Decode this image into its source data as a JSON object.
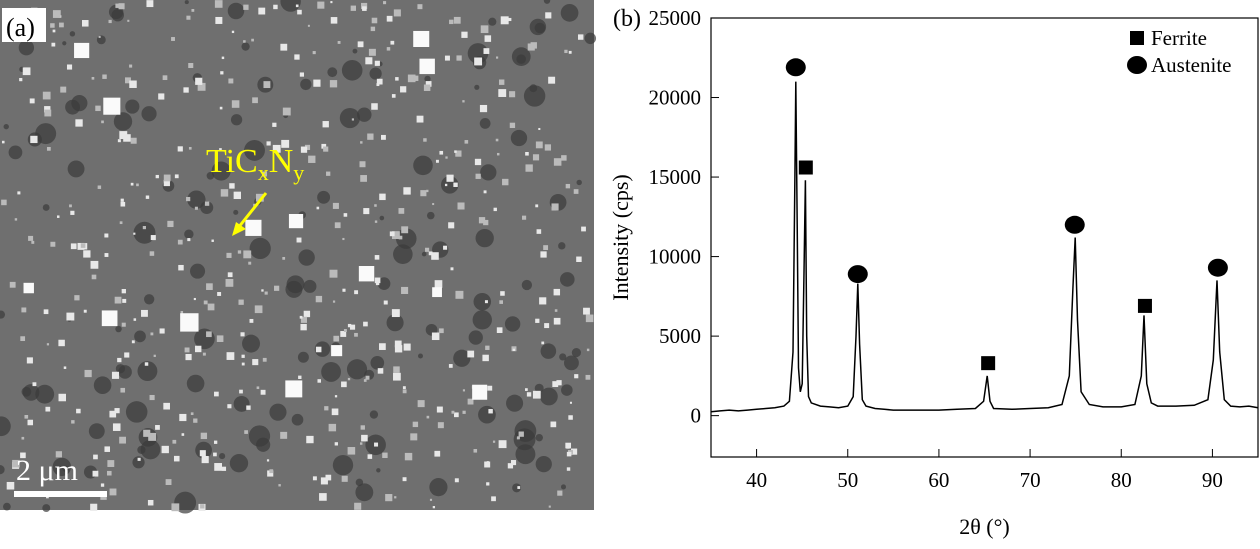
{
  "micrograph": {
    "label": "(a)",
    "annotation": {
      "parts": [
        "TiC",
        "x",
        "N",
        "y"
      ]
    },
    "scale_bar": "2 μm"
  },
  "chart_data": {
    "type": "line",
    "label": "(b)",
    "xlabel": "2θ (°)",
    "ylabel": "Intensity (cps)",
    "color": "#000000",
    "x": [
      35,
      36,
      37,
      38,
      39,
      40,
      41,
      42,
      43,
      43.6,
      44.0,
      44.2,
      44.3,
      44.45,
      44.6,
      44.8,
      45.0,
      45.2,
      45.35,
      45.5,
      45.7,
      46,
      47,
      48,
      49,
      50,
      50.6,
      50.9,
      51.1,
      51.3,
      51.6,
      52,
      53,
      54,
      55,
      56,
      58,
      60,
      62,
      64,
      64.9,
      65.3,
      65.6,
      66,
      68,
      70,
      72,
      73.5,
      74.3,
      74.7,
      74.95,
      75.2,
      75.6,
      76.5,
      78,
      80,
      81.5,
      82.2,
      82.5,
      82.8,
      83.3,
      84,
      86,
      88,
      89.5,
      90.1,
      90.5,
      90.8,
      91.3,
      92,
      93,
      94,
      95
    ],
    "values": [
      250,
      300,
      350,
      300,
      350,
      400,
      450,
      500,
      600,
      900,
      4000,
      15000,
      21000,
      12000,
      3000,
      1500,
      2000,
      9000,
      14800,
      5000,
      1200,
      800,
      600,
      550,
      500,
      600,
      1200,
      5000,
      8300,
      4500,
      1000,
      600,
      450,
      400,
      350,
      350,
      350,
      350,
      400,
      450,
      900,
      2500,
      900,
      450,
      400,
      450,
      500,
      700,
      2500,
      8000,
      11200,
      6000,
      1500,
      700,
      550,
      550,
      700,
      2500,
      6300,
      2000,
      800,
      600,
      600,
      650,
      1000,
      3500,
      8500,
      4000,
      1000,
      600,
      550,
      600,
      500
    ],
    "xlim": [
      35,
      95
    ],
    "ylim": [
      -2600,
      25000
    ],
    "xticks": [
      40,
      50,
      60,
      70,
      80,
      90
    ],
    "yticks": [
      0,
      5000,
      10000,
      15000,
      20000,
      25000
    ],
    "legend": "upper right",
    "markers": [
      {
        "name": "Ferrite",
        "shape": "square",
        "x": [
          45.4,
          65.4,
          82.6
        ],
        "values": [
          15600,
          3300,
          6900
        ]
      },
      {
        "name": "Austenite",
        "shape": "circle",
        "x": [
          44.3,
          51.1,
          74.9,
          90.6
        ],
        "values": [
          21900,
          8900,
          12000,
          9300
        ]
      }
    ]
  }
}
